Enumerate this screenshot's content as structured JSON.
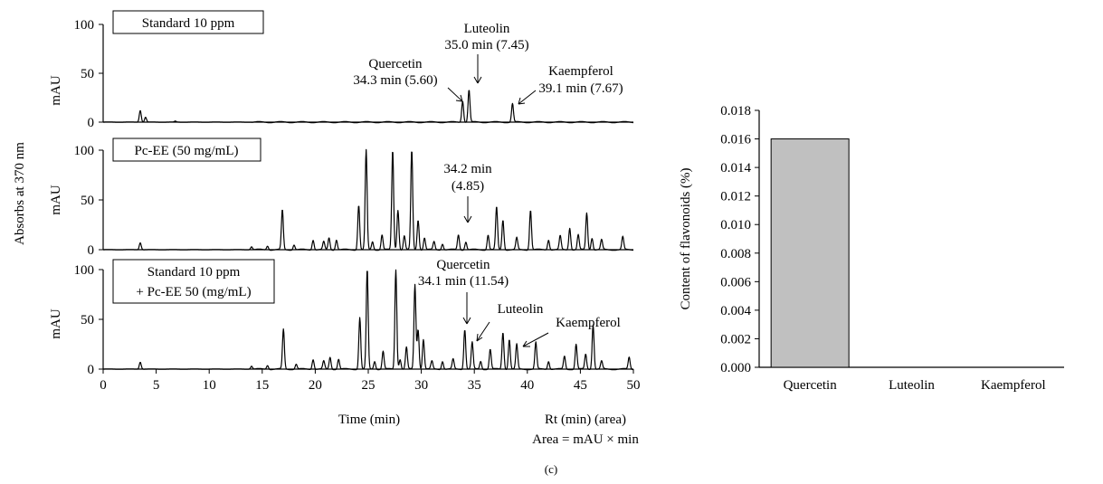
{
  "chart_data": [
    {
      "type": "line",
      "subtype": "chromatogram-stack",
      "shared_y_title": "Absorbs at 370 nm",
      "xlabel": "Time (min)",
      "xlim": [
        0,
        50
      ],
      "x_ticks": [
        "0",
        "5",
        "10",
        "15",
        "20",
        "25",
        "30",
        "35",
        "40",
        "45",
        "50"
      ],
      "footer_note_1": "Rt (min) (area)",
      "footer_note_2": "Area = mAU × min",
      "panels": [
        {
          "label_box": [
            "Standard 10 ppm"
          ],
          "ylabel": "mAU",
          "ylim": [
            0,
            100
          ],
          "y_ticks": [
            "0",
            "50",
            "100"
          ],
          "peaks": [
            [
              3.5,
              12
            ],
            [
              4.0,
              5
            ],
            [
              6.8,
              1
            ],
            [
              33.9,
              22
            ],
            [
              34.5,
              33
            ],
            [
              38.6,
              19
            ]
          ],
          "annotations": [
            {
              "lines": [
                "Quercetin",
                "34.3 min (5.60)"
              ]
            },
            {
              "lines": [
                "Luteolin",
                "35.0 min (7.45)"
              ]
            },
            {
              "lines": [
                "Kaempferol",
                "39.1 min (7.67)"
              ]
            }
          ]
        },
        {
          "label_box": [
            "Pc-EE (50 mg/mL)"
          ],
          "ylabel": "mAU",
          "ylim": [
            0,
            100
          ],
          "y_ticks": [
            "0",
            "50",
            "100"
          ],
          "peaks": [
            [
              3.5,
              7
            ],
            [
              14.0,
              3
            ],
            [
              15.5,
              4
            ],
            [
              16.9,
              40
            ],
            [
              18.0,
              5
            ],
            [
              19.8,
              10
            ],
            [
              20.8,
              8
            ],
            [
              21.3,
              12
            ],
            [
              22.0,
              10
            ],
            [
              24.1,
              45
            ],
            [
              24.8,
              100
            ],
            [
              25.4,
              8
            ],
            [
              26.3,
              15
            ],
            [
              27.3,
              100
            ],
            [
              27.8,
              40
            ],
            [
              28.4,
              14
            ],
            [
              29.1,
              100
            ],
            [
              29.7,
              30
            ],
            [
              30.3,
              12
            ],
            [
              31.2,
              8
            ],
            [
              32.0,
              6
            ],
            [
              33.5,
              15
            ],
            [
              34.2,
              8
            ],
            [
              36.3,
              15
            ],
            [
              37.1,
              43
            ],
            [
              37.7,
              30
            ],
            [
              39.0,
              12
            ],
            [
              40.3,
              40
            ],
            [
              42.0,
              10
            ],
            [
              43.1,
              14
            ],
            [
              44.0,
              22
            ],
            [
              44.8,
              15
            ],
            [
              45.6,
              37
            ],
            [
              46.1,
              12
            ],
            [
              47.0,
              10
            ],
            [
              49.0,
              13
            ]
          ],
          "annotations": [
            {
              "lines": [
                "34.2 min",
                "(4.85)"
              ]
            }
          ]
        },
        {
          "label_box": [
            "Standard 10 ppm",
            "+ Pc-EE 50 (mg/mL)"
          ],
          "ylabel": "mAU",
          "ylim": [
            0,
            100
          ],
          "y_ticks": [
            "0",
            "50",
            "100"
          ],
          "peaks": [
            [
              3.5,
              7
            ],
            [
              14.0,
              3
            ],
            [
              15.5,
              4
            ],
            [
              17.0,
              40
            ],
            [
              18.2,
              5
            ],
            [
              19.8,
              10
            ],
            [
              20.8,
              8
            ],
            [
              21.4,
              12
            ],
            [
              22.2,
              10
            ],
            [
              24.2,
              52
            ],
            [
              24.9,
              100
            ],
            [
              25.6,
              8
            ],
            [
              26.4,
              18
            ],
            [
              27.6,
              100
            ],
            [
              28.0,
              10
            ],
            [
              28.6,
              22
            ],
            [
              29.4,
              85
            ],
            [
              29.7,
              40
            ],
            [
              30.2,
              30
            ],
            [
              31.0,
              8
            ],
            [
              32.0,
              8
            ],
            [
              33.0,
              10
            ],
            [
              34.1,
              40
            ],
            [
              34.8,
              27
            ],
            [
              35.6,
              8
            ],
            [
              36.5,
              20
            ],
            [
              37.7,
              37
            ],
            [
              38.3,
              30
            ],
            [
              39.0,
              25
            ],
            [
              40.8,
              27
            ],
            [
              42.0,
              8
            ],
            [
              43.5,
              13
            ],
            [
              44.6,
              25
            ],
            [
              45.5,
              15
            ],
            [
              46.2,
              45
            ],
            [
              47.0,
              8
            ],
            [
              49.6,
              12
            ]
          ],
          "annotations": [
            {
              "lines": [
                "Quercetin",
                "34.1 min (11.54)"
              ]
            },
            {
              "lines": [
                "Luteolin"
              ]
            },
            {
              "lines": [
                "Kaempferol"
              ]
            }
          ]
        }
      ]
    },
    {
      "type": "bar",
      "categories": [
        "Quercetin",
        "Luteolin",
        "Kaempferol"
      ],
      "values": [
        0.016,
        0,
        0
      ],
      "ylabel": "Content of flavonoids (%)",
      "ylim": [
        0,
        0.018
      ],
      "y_ticks": [
        "0.000",
        "0.002",
        "0.004",
        "0.006",
        "0.008",
        "0.010",
        "0.012",
        "0.014",
        "0.016",
        "0.018"
      ],
      "bar_color": "#c0c0c0"
    }
  ],
  "figure_label": "(c)"
}
